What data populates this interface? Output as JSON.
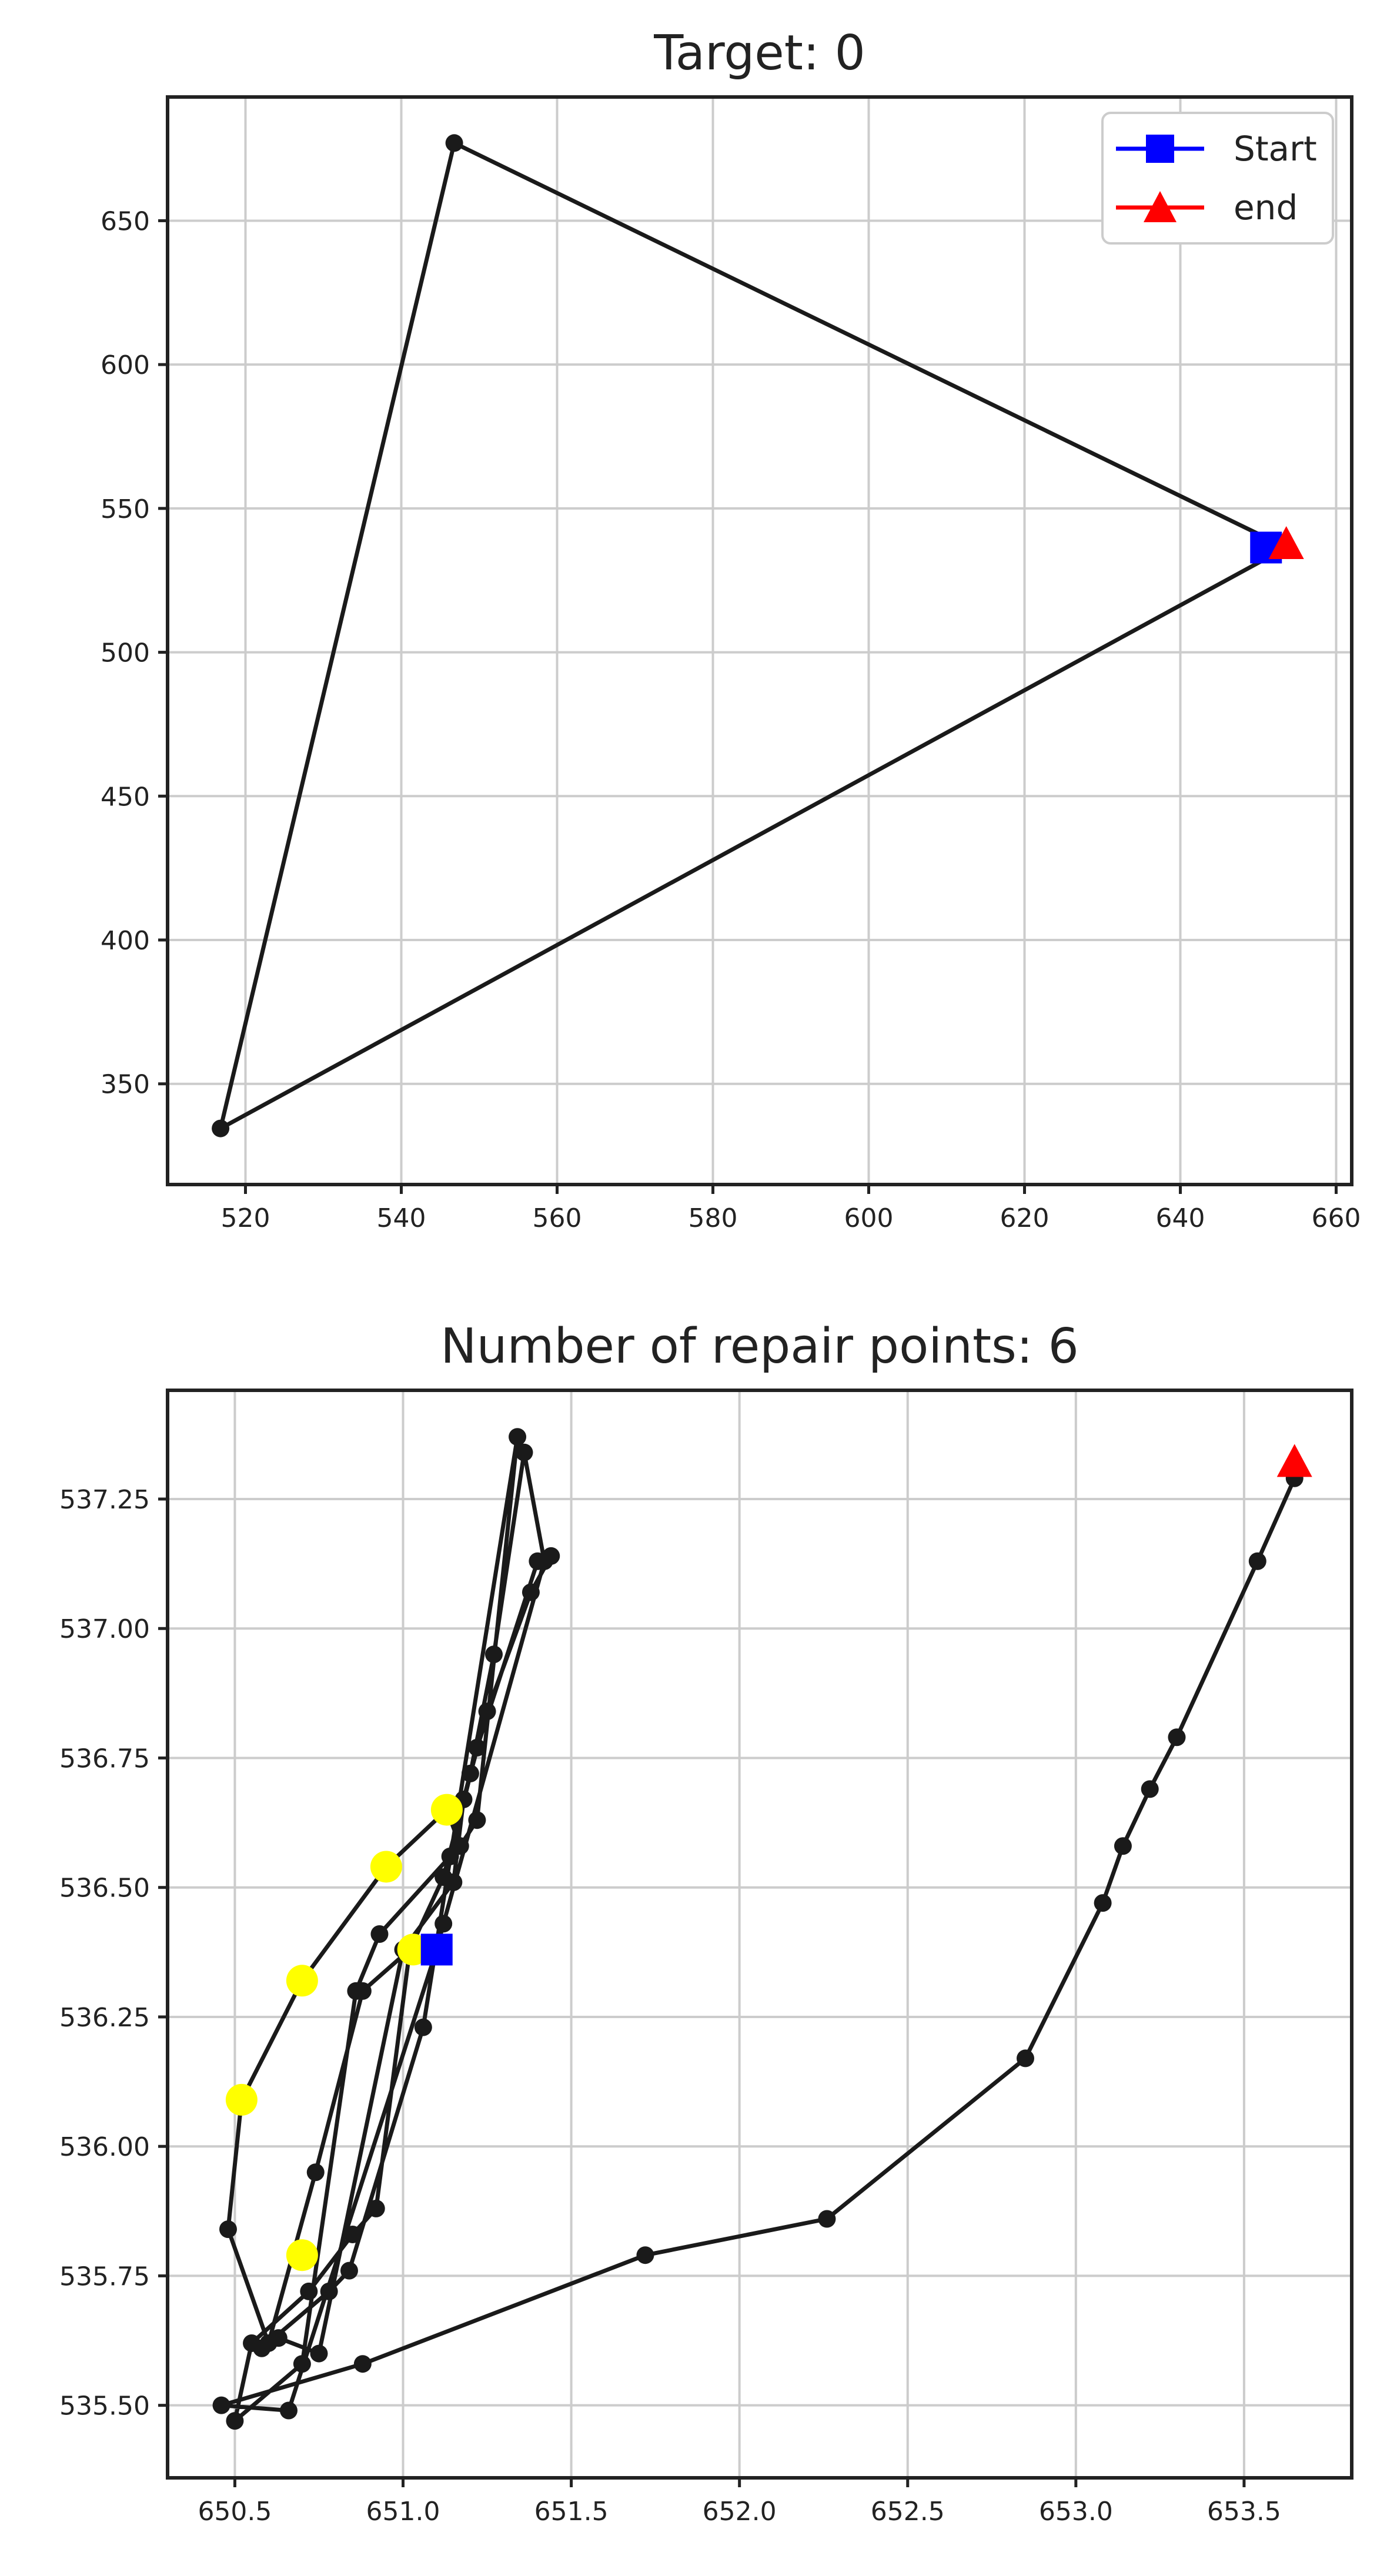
{
  "colors": {
    "path": "#1a1a1a",
    "start": "#0000ff",
    "end": "#ff0000",
    "repair": "#ffff00",
    "grid": "#cccccc",
    "axis": "#222222"
  },
  "chart_data": [
    {
      "type": "line",
      "title": "Target: 0",
      "xlabel": "",
      "ylabel": "",
      "xlim": [
        510,
        662
      ],
      "ylim": [
        315,
        693
      ],
      "grid": true,
      "legend_position": "top-right",
      "xticks": [
        520,
        540,
        560,
        580,
        600,
        620,
        640,
        660
      ],
      "yticks": [
        350,
        400,
        450,
        500,
        550,
        600,
        650
      ],
      "path": {
        "x": [
          653.6,
          546.8,
          516.8,
          653.6
        ],
        "y": [
          536.4,
          677.0,
          334.5,
          536.4
        ]
      },
      "start": {
        "label": "Start",
        "x": 651.0,
        "y": 536.4
      },
      "end": {
        "label": "end",
        "x": 653.6,
        "y": 537.3
      },
      "legend": [
        {
          "label": "Start",
          "marker": "square",
          "color": "#0000ff"
        },
        {
          "label": "end",
          "marker": "triangle",
          "color": "#ff0000"
        }
      ]
    },
    {
      "type": "line",
      "title": "Number of repair points: 6",
      "xlabel": "",
      "ylabel": "",
      "xlim": [
        650.3,
        653.82
      ],
      "ylim": [
        535.36,
        537.46
      ],
      "grid": true,
      "xticks": [
        650.5,
        651.0,
        651.5,
        652.0,
        652.5,
        653.0,
        653.5
      ],
      "yticks": [
        535.5,
        535.75,
        536.0,
        536.25,
        536.5,
        536.75,
        537.0,
        537.25
      ],
      "xtick_labels": [
        "650.5",
        "651.0",
        "651.5",
        "652.0",
        "652.5",
        "653.0",
        "653.5"
      ],
      "ytick_labels": [
        "535.50",
        "535.75",
        "536.00",
        "536.25",
        "536.50",
        "536.75",
        "537.00",
        "537.25"
      ],
      "path": {
        "x": [
          651.12,
          651.02,
          650.88,
          650.74,
          650.6,
          650.48,
          650.52,
          650.7,
          650.95,
          651.13,
          651.17,
          651.22,
          651.34,
          651.06,
          650.84,
          650.78,
          650.58,
          650.63,
          650.75,
          651.0,
          651.15,
          651.18,
          651.25,
          651.38,
          651.44,
          651.4,
          651.22,
          651.14,
          650.93,
          650.86,
          650.7,
          650.5,
          650.55,
          650.72,
          650.85,
          650.92,
          651.02,
          651.12,
          651.2,
          651.27,
          651.36,
          651.42,
          651.12,
          651.1,
          650.66,
          650.46,
          650.88,
          651.72,
          652.26,
          652.85,
          653.08,
          653.14,
          653.22,
          653.3,
          653.54,
          653.65
        ],
        "y": [
          536.38,
          536.38,
          536.3,
          535.95,
          535.62,
          535.84,
          536.09,
          536.32,
          536.54,
          536.65,
          536.58,
          536.63,
          537.37,
          536.23,
          535.76,
          535.72,
          535.61,
          535.63,
          535.6,
          536.38,
          536.51,
          536.67,
          536.84,
          537.07,
          537.14,
          537.13,
          536.77,
          536.56,
          536.41,
          536.3,
          535.58,
          535.47,
          535.62,
          535.72,
          535.83,
          535.88,
          536.38,
          536.52,
          536.72,
          536.95,
          537.34,
          537.13,
          536.43,
          536.38,
          535.49,
          535.5,
          535.58,
          535.79,
          535.86,
          536.17,
          536.47,
          536.58,
          536.69,
          536.79,
          537.13,
          537.29
        ]
      },
      "repair_points": {
        "x": [
          650.52,
          650.7,
          650.95,
          651.13,
          651.03,
          650.7
        ],
        "y": [
          536.09,
          536.32,
          536.54,
          536.65,
          536.38,
          535.79
        ]
      },
      "start": {
        "label": "Start",
        "x": 651.1,
        "y": 536.38
      },
      "end": {
        "label": "end",
        "x": 653.65,
        "y": 537.32
      }
    }
  ]
}
